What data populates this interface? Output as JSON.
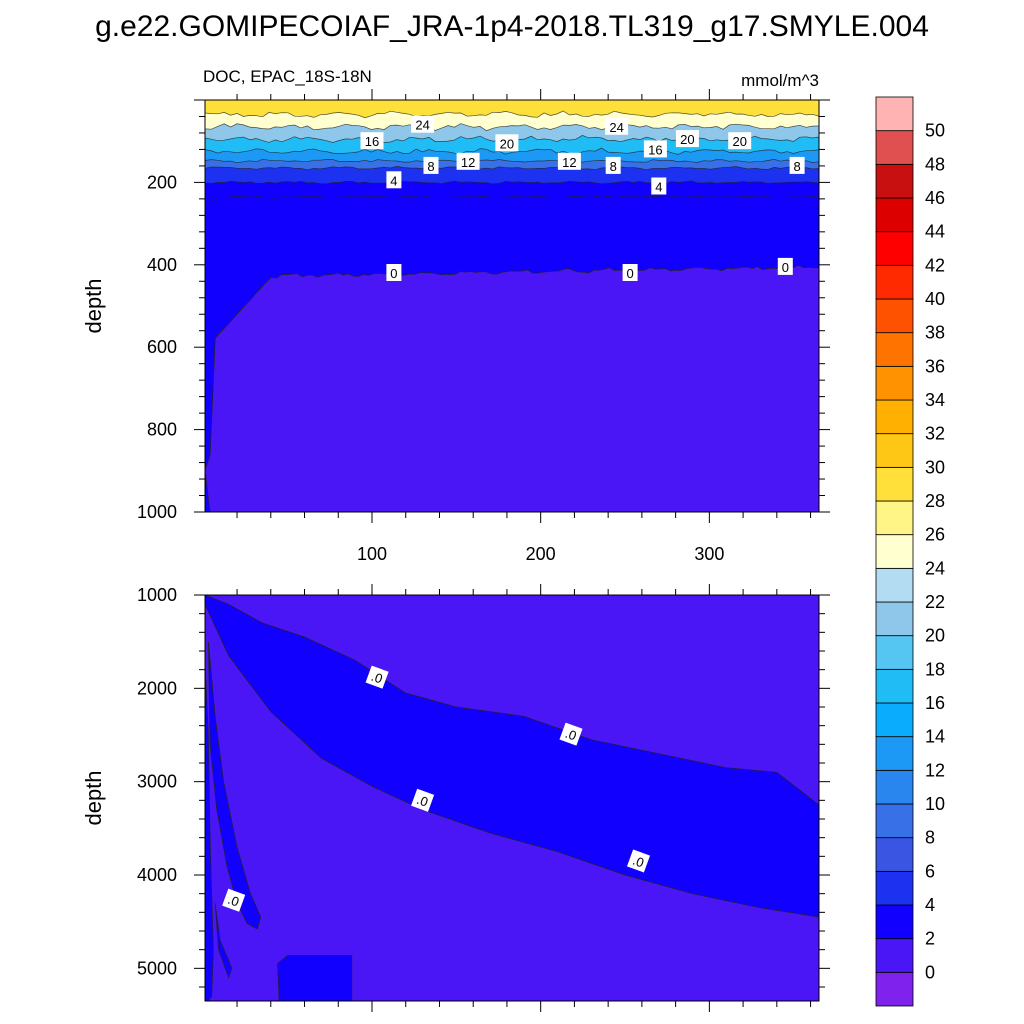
{
  "title": "g.e22.GOMIPECOIAF_JRA-1p4-2018.TL319_g17.SMYLE.004",
  "left_string": "DOC, EPAC_18S-18N",
  "right_string": "mmol/m^3",
  "chart_data": [
    {
      "type": "heatmap",
      "panel": "upper",
      "variable": "DOC",
      "region": "EPAC_18S-18N",
      "units": "mmol/m^3",
      "xlabel": "",
      "ylabel": "depth",
      "xlim": [
        1,
        365
      ],
      "ylim": [
        0,
        1000
      ],
      "y_reversed": true,
      "x_ticks": [
        "100",
        "200",
        "300"
      ],
      "y_ticks": [
        "200",
        "400",
        "600",
        "800",
        "1000"
      ],
      "depth_contours": [
        {
          "level": 0,
          "depth": 410
        },
        {
          "level": 2,
          "depth": 235
        },
        {
          "level": 4,
          "depth": 200
        },
        {
          "level": 8,
          "depth": 165
        },
        {
          "level": 12,
          "depth": 148
        },
        {
          "level": 16,
          "depth": 125
        },
        {
          "level": 20,
          "depth": 95
        },
        {
          "level": 24,
          "depth": 65
        },
        {
          "level": 28,
          "depth": 35
        }
      ],
      "contour_labels": [
        {
          "text": "16",
          "x": 100,
          "y": 100
        },
        {
          "text": "24",
          "x": 130,
          "y": 60
        },
        {
          "text": "8",
          "x": 135,
          "y": 160
        },
        {
          "text": "12",
          "x": 157,
          "y": 150
        },
        {
          "text": "20",
          "x": 180,
          "y": 105
        },
        {
          "text": "4",
          "x": 113,
          "y": 195
        },
        {
          "text": "12",
          "x": 217,
          "y": 150
        },
        {
          "text": "8",
          "x": 243,
          "y": 160
        },
        {
          "text": "24",
          "x": 245,
          "y": 65
        },
        {
          "text": "16",
          "x": 268,
          "y": 120
        },
        {
          "text": "20",
          "x": 287,
          "y": 95
        },
        {
          "text": "20",
          "x": 318,
          "y": 100
        },
        {
          "text": "8",
          "x": 352,
          "y": 160
        },
        {
          "text": "4",
          "x": 270,
          "y": 210
        },
        {
          "text": "0",
          "x": 113,
          "y": 420
        },
        {
          "text": "0",
          "x": 253,
          "y": 420
        },
        {
          "text": "0",
          "x": 345,
          "y": 405
        }
      ]
    },
    {
      "type": "heatmap",
      "panel": "lower",
      "variable": "DOC",
      "region": "EPAC_18S-18N",
      "units": "mmol/m^3",
      "xlabel": "",
      "ylabel": "depth",
      "xlim": [
        1,
        365
      ],
      "ylim": [
        1000,
        5350
      ],
      "y_reversed": true,
      "y_ticks": [
        "1000",
        "2000",
        "3000",
        "4000",
        "5000"
      ],
      "band_levels": [
        0,
        2
      ],
      "contour_labels": [
        {
          "text": ".0",
          "x": 103,
          "y": 1880
        },
        {
          "text": ".0",
          "x": 218,
          "y": 2490
        },
        {
          "text": ".0",
          "x": 130,
          "y": 3200
        },
        {
          "text": ".0",
          "x": 258,
          "y": 3850
        },
        {
          "text": ".0",
          "x": 18,
          "y": 4270
        }
      ]
    }
  ],
  "colorbar": {
    "labels": [
      "0",
      "2",
      "4",
      "6",
      "8",
      "10",
      "12",
      "14",
      "16",
      "18",
      "20",
      "22",
      "24",
      "26",
      "28",
      "30",
      "32",
      "34",
      "36",
      "38",
      "40",
      "42",
      "44",
      "46",
      "48",
      "50"
    ],
    "colors": [
      "#8022ee",
      "#4a16f5",
      "#1200ff",
      "#1c32f0",
      "#3a55e2",
      "#3870e8",
      "#2a86ef",
      "#1c98f5",
      "#0aadfd",
      "#20bcf6",
      "#55c5f2",
      "#8ec7ea",
      "#b3dcf2",
      "#ffffd0",
      "#fff486",
      "#ffe03a",
      "#ffc715",
      "#ffb000",
      "#ff9200",
      "#ff7300",
      "#ff5200",
      "#ff2a00",
      "#ff0000",
      "#dc0000",
      "#c81010",
      "#e05050",
      "#ffb3b3"
    ]
  }
}
